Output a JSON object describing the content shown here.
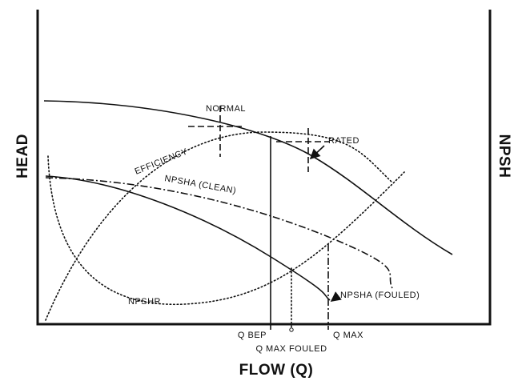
{
  "axes": {
    "left": "HEAD",
    "right": "NPSH",
    "bottom": "FLOW (Q)"
  },
  "curves": {
    "head_normal": "NORMAL",
    "head_rated": "RATED",
    "efficiency": "EFFICIENCY",
    "npsha_clean": "NPSHA (CLEAN)",
    "npshr": "NPSHR",
    "npsha_fouled": "NPSHA (FOULED)"
  },
  "markers": {
    "q_bep": "Q BEP",
    "q_max_fouled": "Q MAX FOULED",
    "q_max": "Q MAX"
  }
}
